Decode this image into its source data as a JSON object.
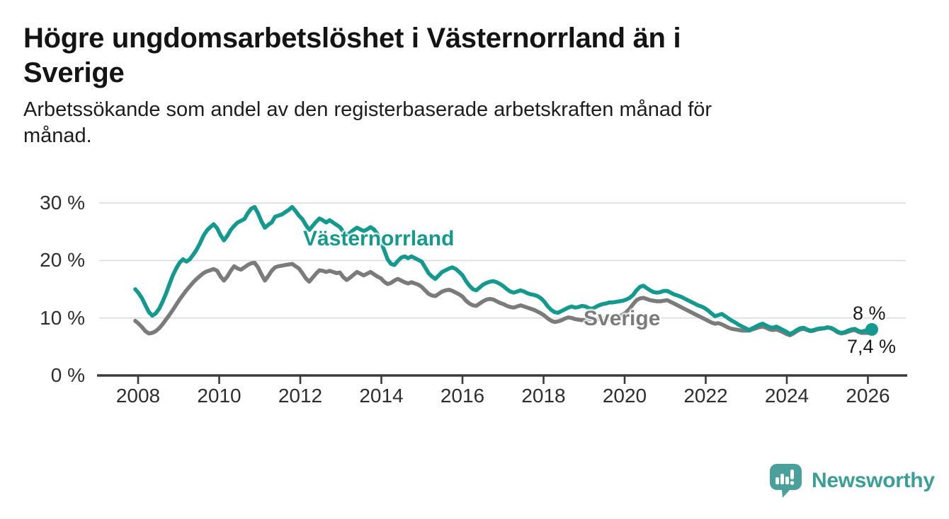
{
  "header": {
    "title": "Högre ungdomsarbetslöshet i Västernorrland än i\nSverige",
    "subtitle": "Arbetssökande som andel av den registerbaserade arbetskraften månad för\nmånad."
  },
  "colors": {
    "accent_teal": "#13998d",
    "line_gray": "#7b7b7b",
    "axis": "#3b3b3b",
    "gridline": "#dcdcdc",
    "text_dark": "#141414",
    "logo_teal": "#3b9e97"
  },
  "branding": {
    "logo_text": "Newsworthy",
    "logo_icon": "speech-bubble-bar-chart-icon"
  },
  "chart_data": {
    "type": "line",
    "unit": "%",
    "frequency": "monthly",
    "x_start": "2008-01",
    "x_end": "2026-01",
    "grid": "horizontal",
    "ylim": [
      0,
      33
    ],
    "y_tick_labels": [
      "30 %",
      "20 %",
      "10 %",
      "0 %"
    ],
    "x_tick_labels": [
      "2008",
      "2010",
      "2012",
      "2014",
      "2016",
      "2018",
      "2020",
      "2022",
      "2024",
      "2026"
    ],
    "series": [
      {
        "name": "Västernorrland",
        "label": "Västernorrland",
        "color": "#13998d",
        "end_label": "8 %",
        "end_value": 8.0,
        "end_dot": true,
        "values": [
          15.0,
          14.3,
          13.4,
          12.2,
          11.0,
          10.4,
          10.8,
          11.6,
          12.8,
          14.2,
          15.8,
          17.4,
          18.6,
          19.6,
          20.2,
          19.8,
          20.2,
          21.0,
          21.9,
          23.0,
          24.3,
          25.2,
          25.8,
          26.3,
          25.6,
          24.4,
          23.5,
          24.3,
          25.3,
          26.0,
          26.6,
          26.9,
          27.2,
          28.2,
          29.0,
          29.3,
          28.2,
          26.8,
          25.7,
          26.2,
          26.6,
          27.6,
          27.8,
          28.0,
          28.4,
          28.8,
          29.3,
          28.6,
          27.8,
          27.2,
          26.2,
          25.3,
          26.0,
          26.7,
          27.3,
          27.0,
          26.6,
          27.0,
          26.6,
          26.2,
          25.8,
          25.0,
          24.4,
          24.8,
          25.3,
          25.7,
          25.4,
          25.1,
          25.4,
          25.8,
          25.4,
          24.6,
          23.4,
          21.8,
          20.2,
          19.4,
          19.2,
          19.9,
          20.5,
          20.7,
          20.4,
          20.7,
          20.4,
          20.1,
          19.8,
          18.8,
          17.8,
          17.2,
          16.8,
          17.4,
          18.0,
          18.3,
          18.6,
          18.8,
          18.5,
          18.0,
          17.4,
          16.4,
          15.6,
          15.0,
          14.8,
          15.3,
          15.8,
          16.1,
          16.3,
          16.4,
          16.2,
          15.9,
          15.5,
          15.0,
          14.6,
          14.4,
          14.6,
          14.8,
          14.6,
          14.3,
          14.1,
          14.0,
          13.8,
          13.4,
          12.8,
          12.0,
          11.4,
          11.0,
          10.9,
          11.2,
          11.5,
          11.8,
          12.0,
          11.8,
          11.9,
          12.1,
          12.0,
          11.7,
          11.6,
          11.9,
          12.2,
          12.4,
          12.5,
          12.7,
          12.7,
          12.8,
          12.9,
          13.0,
          13.2,
          13.5,
          14.0,
          14.8,
          15.4,
          15.6,
          15.2,
          14.8,
          14.5,
          14.4,
          14.5,
          14.7,
          14.7,
          14.4,
          14.1,
          13.9,
          13.7,
          13.4,
          13.1,
          12.8,
          12.5,
          12.2,
          12.0,
          11.7,
          11.3,
          10.8,
          10.3,
          10.5,
          10.7,
          10.3,
          9.9,
          9.5,
          9.2,
          8.8,
          8.5,
          8.2,
          7.9,
          8.2,
          8.5,
          8.8,
          9.0,
          8.7,
          8.4,
          8.3,
          8.5,
          8.2,
          7.9,
          7.6,
          7.2,
          7.5,
          7.9,
          8.2,
          8.3,
          8.0,
          7.8,
          7.9,
          8.1,
          8.2,
          8.2,
          8.3,
          8.3,
          8.0,
          7.6,
          7.4,
          7.5,
          7.8,
          8.0,
          8.1,
          7.8,
          7.6,
          7.8,
          8.0,
          8.0
        ]
      },
      {
        "name": "Sverige",
        "label": "Sverige",
        "color": "#7b7b7b",
        "end_label": "7,4 %",
        "end_value": 7.4,
        "end_dot": false,
        "values": [
          9.5,
          9.0,
          8.4,
          7.7,
          7.3,
          7.4,
          7.7,
          8.2,
          8.9,
          9.7,
          10.5,
          11.4,
          12.3,
          13.2,
          14.0,
          14.8,
          15.5,
          16.2,
          16.8,
          17.3,
          17.8,
          18.1,
          18.3,
          18.5,
          18.2,
          17.2,
          16.5,
          17.2,
          18.2,
          19.0,
          18.6,
          18.4,
          18.8,
          19.2,
          19.5,
          19.6,
          18.8,
          17.6,
          16.5,
          17.3,
          18.2,
          18.8,
          19.0,
          19.1,
          19.2,
          19.3,
          19.4,
          19.0,
          18.6,
          17.8,
          16.9,
          16.3,
          17.0,
          17.7,
          18.3,
          18.2,
          18.0,
          18.2,
          18.0,
          17.8,
          17.9,
          17.1,
          16.6,
          17.0,
          17.5,
          18.0,
          17.7,
          17.4,
          17.7,
          18.0,
          17.6,
          17.2,
          16.9,
          16.3,
          15.9,
          16.1,
          16.5,
          16.8,
          16.5,
          16.2,
          16.0,
          16.2,
          16.0,
          15.8,
          15.4,
          14.8,
          14.2,
          13.9,
          13.8,
          14.2,
          14.6,
          14.8,
          14.9,
          14.7,
          14.4,
          14.1,
          13.7,
          13.0,
          12.5,
          12.2,
          12.1,
          12.5,
          12.9,
          13.2,
          13.3,
          13.2,
          12.9,
          12.6,
          12.4,
          12.1,
          11.9,
          11.8,
          12.0,
          12.2,
          12.0,
          11.8,
          11.6,
          11.4,
          11.1,
          10.8,
          10.4,
          9.9,
          9.5,
          9.3,
          9.4,
          9.6,
          9.9,
          10.1,
          10.0,
          9.8,
          9.7,
          9.6,
          9.7,
          9.7,
          9.8,
          9.7,
          9.8,
          9.9,
          9.8,
          9.8,
          9.9,
          10.1,
          10.3,
          10.6,
          11.0,
          11.6,
          12.4,
          13.1,
          13.4,
          13.5,
          13.3,
          13.1,
          13.0,
          12.9,
          12.9,
          13.0,
          13.1,
          12.8,
          12.5,
          12.2,
          11.9,
          11.6,
          11.3,
          11.0,
          10.7,
          10.4,
          10.1,
          9.8,
          9.5,
          9.2,
          9.0,
          9.1,
          8.9,
          8.6,
          8.3,
          8.1,
          8.0,
          7.9,
          7.8,
          7.8,
          7.8,
          8.0,
          8.2,
          8.4,
          8.5,
          8.3,
          8.0,
          7.9,
          8.0,
          7.8,
          7.5,
          7.2,
          7.0,
          7.3,
          7.7,
          8.0,
          8.1,
          7.9,
          7.7,
          7.8,
          8.0,
          8.1,
          8.2,
          8.4,
          8.2,
          7.9,
          7.5,
          7.3,
          7.4,
          7.6,
          7.8,
          7.9,
          7.6,
          7.4,
          7.4,
          7.4,
          7.4
        ]
      }
    ]
  }
}
